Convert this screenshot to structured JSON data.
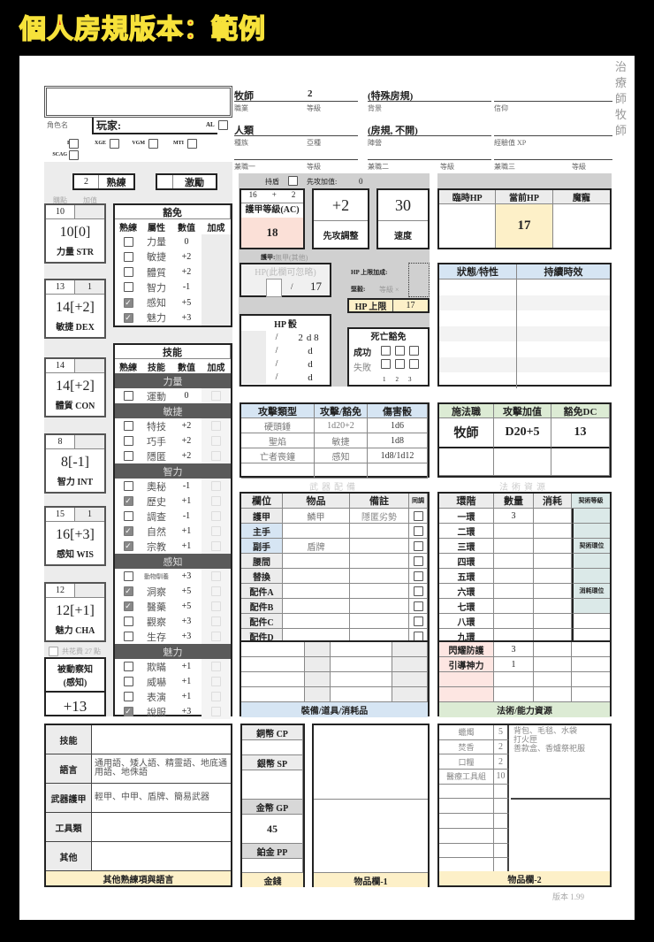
{
  "title": "個人房規版本：範例",
  "side_note": "治療師牧師",
  "header": {
    "character_name": "",
    "character_name_label": "角色名",
    "player_label": "玩家:",
    "al_label": "AL",
    "sources": [
      "EE",
      "XGE",
      "VGM",
      "MTI",
      "SCAG"
    ],
    "class": "牧師",
    "class_label": "職業",
    "level": "2",
    "level_label": "等級",
    "background": "(特殊房規)",
    "background_label": "背景",
    "faith_label": "信仰",
    "race": "人類",
    "race_label": "種族",
    "subrace_label": "亞種",
    "alignment": "(房規, 不開)",
    "alignment_label": "陣營",
    "xp_label": "經驗值 XP",
    "multiclass_labels": [
      "兼職一",
      "兼職二",
      "兼職三"
    ]
  },
  "proficiency": {
    "value": "2",
    "label": "熟練"
  },
  "inspiration": {
    "value": "",
    "label": "激勵"
  },
  "point_buy_label": "購點",
  "bonus_label": "加值",
  "abilities": [
    {
      "base": "10",
      "bonus": "",
      "score": "10[0]",
      "label": "力量 STR"
    },
    {
      "base": "13",
      "bonus": "1",
      "score": "14[+2]",
      "label": "敏捷 DEX"
    },
    {
      "base": "14",
      "bonus": "",
      "score": "14[+2]",
      "label": "體質 CON"
    },
    {
      "base": "8",
      "bonus": "",
      "score": "8[-1]",
      "label": "智力 INT"
    },
    {
      "base": "15",
      "bonus": "1",
      "score": "16[+3]",
      "label": "感知 WIS"
    },
    {
      "base": "12",
      "bonus": "",
      "score": "12[+1]",
      "label": "魅力 CHA"
    }
  ],
  "saves": {
    "title": "豁免",
    "headers": [
      "熟練",
      "屬性",
      "數值",
      "加成"
    ],
    "rows": [
      {
        "name": "力量",
        "value": "0",
        "prof": false
      },
      {
        "name": "敏捷",
        "value": "+2",
        "prof": false
      },
      {
        "name": "體質",
        "value": "+2",
        "prof": false
      },
      {
        "name": "智力",
        "value": "-1",
        "prof": false
      },
      {
        "name": "感知",
        "value": "+5",
        "prof": true
      },
      {
        "name": "魅力",
        "value": "+3",
        "prof": true
      }
    ]
  },
  "skills": {
    "title": "技能",
    "headers": [
      "熟練",
      "技能",
      "數值",
      "加成"
    ],
    "groups": [
      {
        "name": "力量",
        "rows": [
          {
            "name": "運動",
            "value": "0",
            "prof": false
          }
        ]
      },
      {
        "name": "敏捷",
        "rows": [
          {
            "name": "特技",
            "value": "+2",
            "prof": false
          },
          {
            "name": "巧手",
            "value": "+2",
            "prof": false
          },
          {
            "name": "隱匿",
            "value": "+2",
            "prof": false
          }
        ]
      },
      {
        "name": "智力",
        "rows": [
          {
            "name": "奧秘",
            "value": "-1",
            "prof": false
          },
          {
            "name": "歷史",
            "value": "+1",
            "prof": true
          },
          {
            "name": "調查",
            "value": "-1",
            "prof": false
          },
          {
            "name": "自然",
            "value": "+1",
            "prof": true
          },
          {
            "name": "宗教",
            "value": "+1",
            "prof": true
          }
        ]
      },
      {
        "name": "感知",
        "rows": [
          {
            "name": "動物馴養",
            "value": "+3",
            "prof": false
          },
          {
            "name": "洞察",
            "value": "+5",
            "prof": true
          },
          {
            "name": "醫藥",
            "value": "+5",
            "prof": true
          },
          {
            "name": "觀察",
            "value": "+3",
            "prof": false
          },
          {
            "name": "生存",
            "value": "+3",
            "prof": false
          }
        ]
      },
      {
        "name": "魅力",
        "rows": [
          {
            "name": "欺瞞",
            "value": "+1",
            "prof": false
          },
          {
            "name": "威嚇",
            "value": "+1",
            "prof": false
          },
          {
            "name": "表演",
            "value": "+1",
            "prof": false
          },
          {
            "name": "說服",
            "value": "+3",
            "prof": true
          }
        ]
      }
    ]
  },
  "point_total_label": "共花費 27 點",
  "passive": {
    "label": "被動察知",
    "sub": "(感知)",
    "value": "+13"
  },
  "combat": {
    "shield_label": "持盾",
    "init_bonus_label": "先攻加值:",
    "init_bonus": "0",
    "ac_base": "16",
    "ac_plus": "+",
    "ac_shield": "2",
    "ac_label": "護甲等級(AC)",
    "ac": "18",
    "initiative": "+2",
    "initiative_label": "先攻調整",
    "speed": "30",
    "speed_label": "速度",
    "armor_label": "護甲:",
    "armor": "無甲(其他)",
    "hp_box_label": "HP(此欄可忽略)",
    "hp_slash": "/",
    "hp_max_small": "17",
    "hp_bonus_label": "HP 上限加成:",
    "tough_label": "堅毅:",
    "tough_level": "等級 ×",
    "hp_max_label": "HP 上限",
    "hp_max": "17"
  },
  "hit_dice": {
    "title": "HP 骰",
    "rows": [
      {
        "slash": "/",
        "count": "2",
        "die": "d 8"
      },
      {
        "slash": "/",
        "count": "",
        "die": "d"
      },
      {
        "slash": "/",
        "count": "",
        "die": "d"
      },
      {
        "slash": "/",
        "count": "",
        "die": "d"
      }
    ]
  },
  "death_saves": {
    "title": "死亡豁免",
    "success": "成功",
    "fail": "失敗",
    "numbers": [
      "1",
      "2",
      "3"
    ]
  },
  "hp": {
    "temp_label": "臨時HP",
    "current_label": "當前HP",
    "current": "17",
    "pet_label": "魔寵"
  },
  "conditions": {
    "headers": [
      "狀態/特性",
      "持續時效"
    ]
  },
  "attacks": {
    "headers": [
      "攻擊類型",
      "攻擊/豁免",
      "傷害骰"
    ],
    "rows": [
      [
        "硬頭錘",
        "1d20+2",
        "1d6"
      ],
      [
        "聖焰",
        "敏捷",
        "1d8"
      ],
      [
        "亡者喪鐘",
        "感知",
        "1d8/1d12"
      ],
      [
        "",
        "",
        ""
      ]
    ]
  },
  "spellcasting": {
    "headers": [
      "施法職",
      "攻擊加值",
      "豁免DC"
    ],
    "values": [
      "牧師",
      "D20+5",
      "13"
    ]
  },
  "section_labels": {
    "weapons": "武器配備",
    "spells": "法術資源"
  },
  "equipment": {
    "headers": [
      "欄位",
      "物品",
      "備註",
      "同調"
    ],
    "rows": [
      {
        "slot": "護甲",
        "item": "鱗甲",
        "note": "隱匿劣勢",
        "hl": false
      },
      {
        "slot": "主手",
        "item": "",
        "note": "",
        "hl": true
      },
      {
        "slot": "副手",
        "item": "盾牌",
        "note": "",
        "hl": true
      },
      {
        "slot": "腰間",
        "item": "",
        "note": "",
        "hl": false
      },
      {
        "slot": "替換",
        "item": "",
        "note": "",
        "hl": false
      },
      {
        "slot": "配件A",
        "item": "",
        "note": "",
        "hl": false
      },
      {
        "slot": "配件B",
        "item": "",
        "note": "",
        "hl": false
      },
      {
        "slot": "配件C",
        "item": "",
        "note": "",
        "hl": false
      },
      {
        "slot": "配件D",
        "item": "",
        "note": "",
        "hl": false
      }
    ],
    "footer": "裝備/道具/消耗品"
  },
  "spell_slots": {
    "headers": [
      "環階",
      "數量",
      "消耗"
    ],
    "levels": [
      {
        "name": "一環",
        "count": "3"
      },
      {
        "name": "二環",
        "count": ""
      },
      {
        "name": "三環",
        "count": ""
      },
      {
        "name": "四環",
        "count": ""
      },
      {
        "name": "五環",
        "count": ""
      },
      {
        "name": "六環",
        "count": ""
      },
      {
        "name": "七環",
        "count": ""
      },
      {
        "name": "八環",
        "count": ""
      },
      {
        "name": "九環",
        "count": ""
      }
    ],
    "side_labels": [
      "契術等級",
      "契術環位",
      "消耗環位"
    ],
    "resources": [
      {
        "name": "閃耀防護",
        "count": "3"
      },
      {
        "name": "引導神力",
        "count": "1"
      },
      {
        "name": "",
        "count": ""
      },
      {
        "name": "",
        "count": ""
      }
    ],
    "footer": "法術/能力資源"
  },
  "proficiencies": {
    "rows": [
      {
        "label": "技能",
        "value": ""
      },
      {
        "label": "語言",
        "value": "通用語、矮人語、精靈語、地底通用語、地侏語"
      },
      {
        "label": "武器護甲",
        "value": "輕甲、中甲、盾牌、簡易武器"
      },
      {
        "label": "工具類",
        "value": ""
      },
      {
        "label": "其他",
        "value": ""
      }
    ],
    "footer": "其他熟練項與語言"
  },
  "money": {
    "rows": [
      {
        "label": "銅幣 CP",
        "value": ""
      },
      {
        "label": "銀幣 SP",
        "value": ""
      },
      {
        "label": "金幣 GP",
        "value": "45"
      },
      {
        "label": "鉑金 PP",
        "value": ""
      }
    ],
    "footer": "金錢"
  },
  "items1": {
    "footer": "物品欄-1"
  },
  "items2": {
    "rows": [
      {
        "name": "蠟燭",
        "qty": "5"
      },
      {
        "name": "焚香",
        "qty": "2"
      },
      {
        "name": "口糧",
        "qty": "2"
      },
      {
        "name": "醫療工具組",
        "qty": "10"
      }
    ],
    "notes": "背包、毛毯、水袋\n打火匣\n善款盒、香爐祭祀服",
    "footer": "物品欄-2"
  },
  "version": "版本 1.99"
}
